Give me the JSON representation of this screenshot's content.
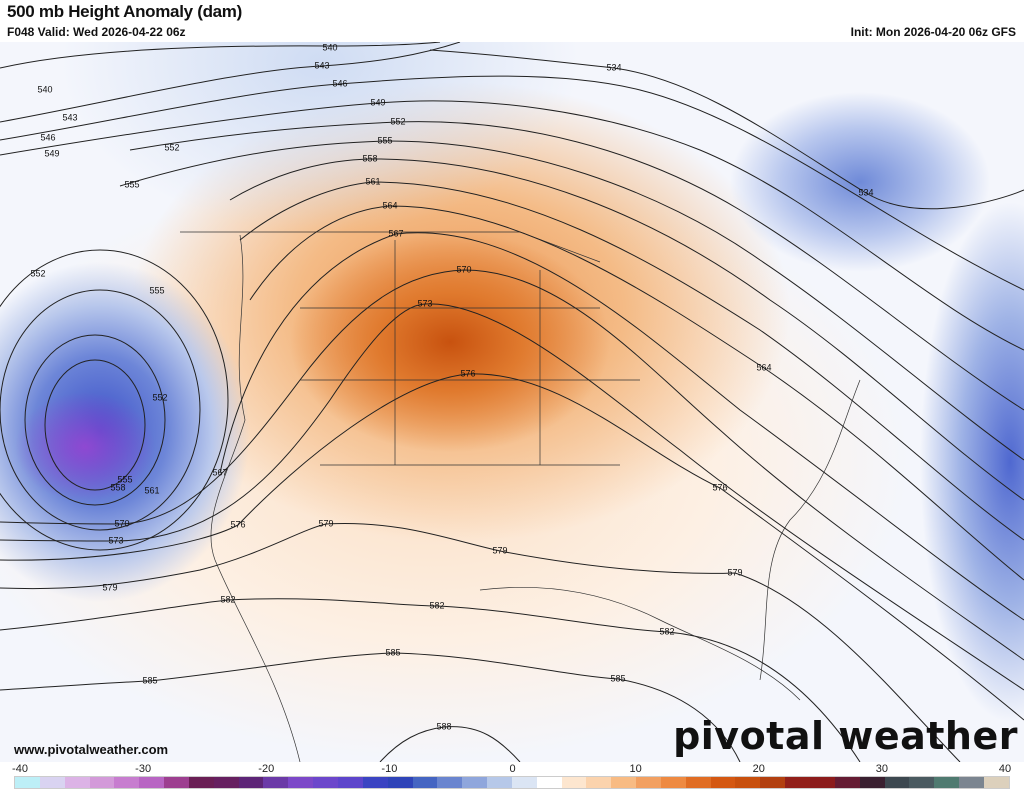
{
  "header": {
    "title": "500 mb Height Anomaly (dam)",
    "valid": "F048 Valid: Wed 2026-04-22 06z",
    "init": "Init: Mon 2026-04-20 06z GFS"
  },
  "footer": {
    "site": "www.pivotalweather.com",
    "logo": "pivotal weather"
  },
  "contour_labels": [
    "540",
    "543",
    "546",
    "549",
    "552",
    "555",
    "558",
    "561",
    "564",
    "567",
    "570",
    "573",
    "576",
    "579",
    "582",
    "585",
    "588",
    "534"
  ],
  "colorbar": {
    "ticks": [
      "-40",
      "-30",
      "-20",
      "-10",
      "0",
      "10",
      "20",
      "30",
      "40"
    ],
    "min": -40,
    "max": 40,
    "step": 2,
    "colors": [
      "#bdeff7",
      "#d9d3f1",
      "#dcb3e6",
      "#d39ad9",
      "#c77dcf",
      "#b865c3",
      "#9d3f90",
      "#6a1f55",
      "#662060",
      "#5d2577",
      "#6b3aa7",
      "#7c48c8",
      "#6c47cb",
      "#5d45cb",
      "#3b44c2",
      "#2f44b8",
      "#4565c2",
      "#6a85cf",
      "#8fa6dc",
      "#b6c8e9",
      "#dbe5f4",
      "#ffffff",
      "#fde6cf",
      "#fbd3ad",
      "#f8bb83",
      "#f2a061",
      "#ee8a42",
      "#e06d24",
      "#d45812",
      "#c8500e",
      "#b24010",
      "#92201a",
      "#8c1c1c",
      "#651c33",
      "#3a2030",
      "#3d4850",
      "#4a5a60",
      "#4f7a70",
      "#7b8590",
      "#dcd0bc"
    ]
  }
}
